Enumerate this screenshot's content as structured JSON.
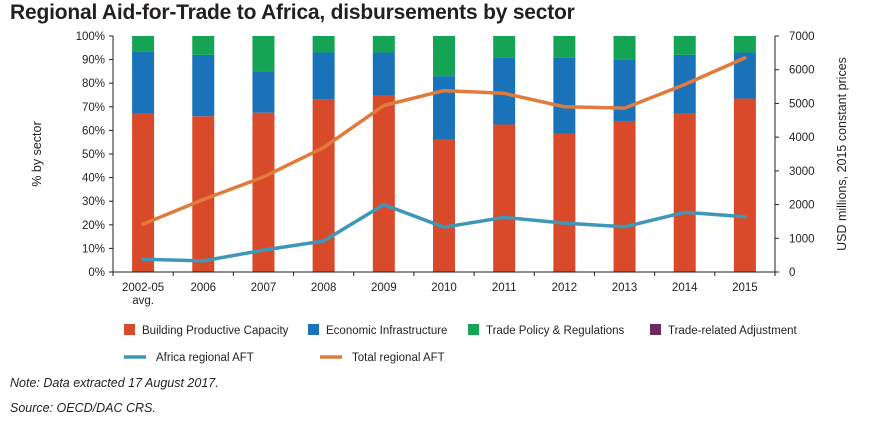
{
  "chart_data": {
    "type": "bar+line",
    "title": "Regional Aid-for-Trade to Africa, disbursements by sector",
    "categories": [
      "2002-05 avg.",
      "2006",
      "2007",
      "2008",
      "2009",
      "2010",
      "2011",
      "2012",
      "2013",
      "2014",
      "2015"
    ],
    "left_axis": {
      "label": "% by sector",
      "ticks": [
        "0%",
        "10%",
        "20%",
        "30%",
        "40%",
        "50%",
        "60%",
        "70%",
        "80%",
        "90%",
        "100%"
      ],
      "range": [
        0,
        100
      ]
    },
    "right_axis": {
      "label": "USD millions, 2015 constant prices",
      "ticks": [
        "0",
        "1000",
        "2000",
        "3000",
        "4000",
        "5000",
        "6000",
        "7000"
      ],
      "range": [
        0,
        7000
      ]
    },
    "bar_series": [
      {
        "name": "Building Productive Capacity",
        "color": "#d94a2a",
        "values": [
          67,
          66,
          67.5,
          73,
          75,
          56,
          62.5,
          58.5,
          64,
          67,
          73.5
        ]
      },
      {
        "name": "Economic Infrastructure",
        "color": "#1a73b8",
        "values": [
          26.5,
          26,
          17.5,
          20,
          18,
          27,
          28.5,
          32.5,
          26,
          25,
          19.5
        ]
      },
      {
        "name": "Trade Policy & Regulations",
        "color": "#14a454",
        "values": [
          6.5,
          8,
          15,
          7,
          7,
          17,
          9,
          9,
          10,
          8,
          7
        ]
      },
      {
        "name": "Trade-related Adjustment",
        "color": "#6d2a5c",
        "values": [
          0,
          0,
          0,
          0,
          0,
          0,
          0,
          0,
          0,
          0,
          0
        ]
      }
    ],
    "line_series": [
      {
        "name": "Africa regional AFT",
        "color": "#3f97b8",
        "values": [
          380,
          330,
          650,
          920,
          2000,
          1330,
          1620,
          1450,
          1340,
          1770,
          1640
        ]
      },
      {
        "name": "Total regional AFT",
        "color": "#e07b3c",
        "values": [
          1420,
          2150,
          2820,
          3690,
          4940,
          5380,
          5300,
          4900,
          4860,
          5560,
          6350
        ]
      }
    ],
    "legend_position": "bottom",
    "grid": false
  },
  "notes": {
    "note": "Note: Data extracted 17 August 2017.",
    "source": "Source: OECD/DAC CRS."
  },
  "colors": {
    "axis": "#231f20",
    "text": "#231f20"
  }
}
